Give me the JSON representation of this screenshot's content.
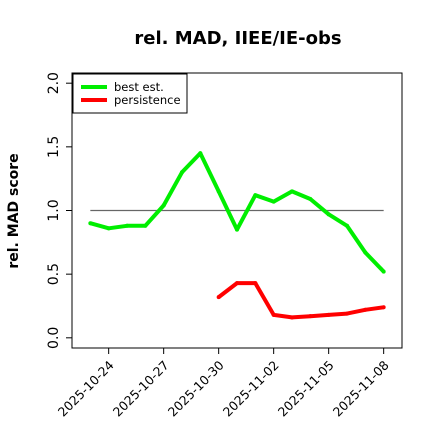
{
  "chart_data": {
    "type": "line",
    "title": "rel. MAD, IIEE/IE-obs",
    "xlabel": "",
    "ylabel": "rel. MAD score",
    "xlim": [
      "2025-10-22",
      "2025-11-09"
    ],
    "ylim": [
      0,
      2
    ],
    "yticks": [
      0.0,
      0.5,
      1.0,
      1.5,
      2.0
    ],
    "ytick_labels": [
      "0.0",
      "0.5",
      "1.0",
      "1.5",
      "2.0"
    ],
    "xticks": [
      "2025-10-24",
      "2025-10-27",
      "2025-10-30",
      "2025-11-02",
      "2025-11-05",
      "2025-11-08"
    ],
    "reference_line": {
      "y": 1.0,
      "x_from": "2025-10-23",
      "x_to": "2025-11-08",
      "color": "#666666"
    },
    "legend_position": "top-left",
    "series": [
      {
        "name": "best est.",
        "color": "#00ee00",
        "x": [
          "2025-10-23",
          "2025-10-24",
          "2025-10-25",
          "2025-10-26",
          "2025-10-27",
          "2025-10-28",
          "2025-10-29",
          "2025-10-30",
          "2025-10-31",
          "2025-11-01",
          "2025-11-02",
          "2025-11-03",
          "2025-11-04",
          "2025-11-05",
          "2025-11-06",
          "2025-11-07",
          "2025-11-08"
        ],
        "values": [
          0.9,
          0.86,
          0.88,
          0.88,
          1.04,
          1.3,
          1.45,
          1.15,
          0.85,
          1.12,
          1.07,
          1.15,
          1.09,
          0.97,
          0.88,
          0.67,
          0.52
        ]
      },
      {
        "name": "persistence",
        "color": "#ff0000",
        "x": [
          "2025-10-30",
          "2025-10-31",
          "2025-11-01",
          "2025-11-02",
          "2025-11-03",
          "2025-11-04",
          "2025-11-05",
          "2025-11-06",
          "2025-11-07",
          "2025-11-08"
        ],
        "values": [
          0.32,
          0.43,
          0.43,
          0.18,
          0.16,
          0.17,
          0.18,
          0.19,
          0.22,
          0.24
        ]
      }
    ]
  }
}
